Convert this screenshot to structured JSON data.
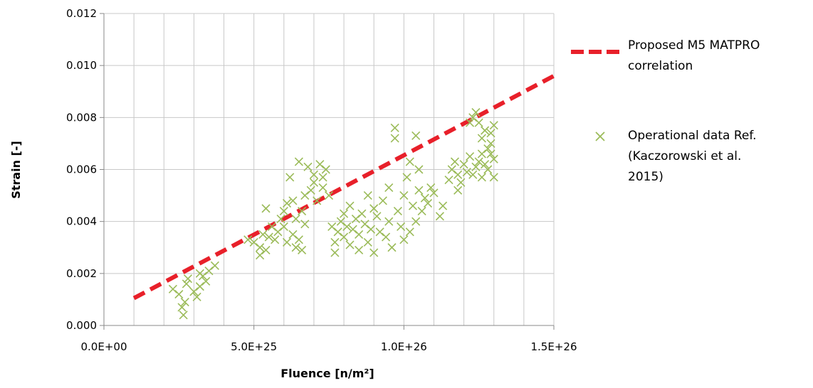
{
  "chart_data": {
    "type": "scatter",
    "xlabel": "Fluence [n/m²]",
    "ylabel": "Strain [-]",
    "xlim": [
      0,
      1.5e+26
    ],
    "ylim": [
      0,
      0.012
    ],
    "x_ticks": [
      0,
      5e+25,
      1e+26,
      1.5e+26
    ],
    "x_tick_labels": [
      "0.0E+00",
      "5.0E+25",
      "1.0E+26",
      "1.5E+26"
    ],
    "y_ticks": [
      0,
      0.002,
      0.004,
      0.006,
      0.008,
      0.01,
      0.012
    ],
    "y_tick_labels": [
      "0.000",
      "0.002",
      "0.004",
      "0.006",
      "0.008",
      "0.010",
      "0.012"
    ],
    "grid": true,
    "legend_position": "right",
    "series": [
      {
        "name": "Proposed M5 MATPRO correlation",
        "kind": "line",
        "style": "dashed",
        "color": "#e8202a",
        "points": [
          [
            1e+25,
            0.00105
          ],
          [
            1.5e+26,
            0.0096
          ]
        ]
      },
      {
        "name": "Operational data Ref. (Kaczorowski et al. 2015)",
        "kind": "scatter",
        "marker": "x",
        "color": "#9bbb59",
        "points": [
          [
            2.3e+25,
            0.0014
          ],
          [
            2.5e+25,
            0.0012
          ],
          [
            2.6e+25,
            0.0007
          ],
          [
            2.65e+25,
            0.0004
          ],
          [
            2.7e+25,
            0.0009
          ],
          [
            2.75e+25,
            0.0016
          ],
          [
            2.8e+25,
            0.0018
          ],
          [
            3e+25,
            0.0013
          ],
          [
            3.1e+25,
            0.0011
          ],
          [
            3.2e+25,
            0.0015
          ],
          [
            3.3e+25,
            0.0019
          ],
          [
            3.4e+25,
            0.0017
          ],
          [
            3.5e+25,
            0.0021
          ],
          [
            3.7e+25,
            0.0023
          ],
          [
            3.2e+25,
            0.002
          ],
          [
            4.8e+25,
            0.0033
          ],
          [
            5e+25,
            0.0032
          ],
          [
            5.2e+25,
            0.003
          ],
          [
            5.2e+25,
            0.0027
          ],
          [
            5.3e+25,
            0.0035
          ],
          [
            5.4e+25,
            0.0029
          ],
          [
            5.4e+25,
            0.0045
          ],
          [
            5.5e+25,
            0.0034
          ],
          [
            5.6e+25,
            0.0038
          ],
          [
            5.7e+25,
            0.0033
          ],
          [
            5.8e+25,
            0.0036
          ],
          [
            5.9e+25,
            0.0041
          ],
          [
            6e+25,
            0.0044
          ],
          [
            6e+25,
            0.0038
          ],
          [
            6.1e+25,
            0.0047
          ],
          [
            6.1e+25,
            0.0032
          ],
          [
            6.2e+25,
            0.0057
          ],
          [
            6.3e+25,
            0.0048
          ],
          [
            6.3e+25,
            0.0035
          ],
          [
            6.4e+25,
            0.003
          ],
          [
            6.4e+25,
            0.0041
          ],
          [
            6.5e+25,
            0.0063
          ],
          [
            6.5e+25,
            0.0033
          ],
          [
            6.6e+25,
            0.0044
          ],
          [
            6.6e+25,
            0.0029
          ],
          [
            6.7e+25,
            0.0039
          ],
          [
            6.7e+25,
            0.005
          ],
          [
            6.8e+25,
            0.0061
          ],
          [
            6.9e+25,
            0.0052
          ],
          [
            7e+25,
            0.0055
          ],
          [
            7e+25,
            0.0058
          ],
          [
            7.1e+25,
            0.0048
          ],
          [
            7.2e+25,
            0.0062
          ],
          [
            7.3e+25,
            0.0057
          ],
          [
            7.3e+25,
            0.0053
          ],
          [
            7.4e+25,
            0.006
          ],
          [
            7.5e+25,
            0.005
          ],
          [
            7.6e+25,
            0.0038
          ],
          [
            7.7e+25,
            0.0032
          ],
          [
            7.7e+25,
            0.0028
          ],
          [
            7.8e+25,
            0.0036
          ],
          [
            7.9e+25,
            0.004
          ],
          [
            8e+25,
            0.0043
          ],
          [
            8e+25,
            0.0034
          ],
          [
            8.1e+25,
            0.0038
          ],
          [
            8.2e+25,
            0.0031
          ],
          [
            8.2e+25,
            0.0046
          ],
          [
            8.3e+25,
            0.0037
          ],
          [
            8.4e+25,
            0.0041
          ],
          [
            8.5e+25,
            0.0029
          ],
          [
            8.5e+25,
            0.0035
          ],
          [
            8.6e+25,
            0.0043
          ],
          [
            8.7e+25,
            0.0039
          ],
          [
            8.8e+25,
            0.0032
          ],
          [
            8.8e+25,
            0.005
          ],
          [
            8.9e+25,
            0.0037
          ],
          [
            9e+25,
            0.0045
          ],
          [
            9e+25,
            0.0028
          ],
          [
            9.1e+25,
            0.0042
          ],
          [
            9.2e+25,
            0.0036
          ],
          [
            9.3e+25,
            0.0048
          ],
          [
            9.4e+25,
            0.0034
          ],
          [
            9.5e+25,
            0.004
          ],
          [
            9.5e+25,
            0.0053
          ],
          [
            9.6e+25,
            0.003
          ],
          [
            9.7e+25,
            0.0072
          ],
          [
            9.7e+25,
            0.0076
          ],
          [
            9.8e+25,
            0.0044
          ],
          [
            9.9e+25,
            0.0038
          ],
          [
            1e+26,
            0.005
          ],
          [
            1e+26,
            0.0033
          ],
          [
            1.01e+26,
            0.0057
          ],
          [
            1.02e+26,
            0.0063
          ],
          [
            1.02e+26,
            0.0036
          ],
          [
            1.03e+26,
            0.0046
          ],
          [
            1.04e+26,
            0.0073
          ],
          [
            1.04e+26,
            0.004
          ],
          [
            1.05e+26,
            0.006
          ],
          [
            1.05e+26,
            0.0052
          ],
          [
            1.06e+26,
            0.0044
          ],
          [
            1.07e+26,
            0.0049
          ],
          [
            1.08e+26,
            0.0047
          ],
          [
            1.09e+26,
            0.0053
          ],
          [
            1.1e+26,
            0.0051
          ],
          [
            1.12e+26,
            0.0042
          ],
          [
            1.13e+26,
            0.0046
          ],
          [
            1.15e+26,
            0.0056
          ],
          [
            1.16e+26,
            0.006
          ],
          [
            1.17e+26,
            0.0063
          ],
          [
            1.18e+26,
            0.0058
          ],
          [
            1.19e+26,
            0.0055
          ],
          [
            1.2e+26,
            0.0062
          ],
          [
            1.21e+26,
            0.0059
          ],
          [
            1.22e+26,
            0.0065
          ],
          [
            1.22e+26,
            0.0078
          ],
          [
            1.23e+26,
            0.008
          ],
          [
            1.24e+26,
            0.0061
          ],
          [
            1.24e+26,
            0.0082
          ],
          [
            1.25e+26,
            0.0063
          ],
          [
            1.25e+26,
            0.0078
          ],
          [
            1.26e+26,
            0.0066
          ],
          [
            1.26e+26,
            0.0057
          ],
          [
            1.27e+26,
            0.0062
          ],
          [
            1.27e+26,
            0.0075
          ],
          [
            1.28e+26,
            0.0068
          ],
          [
            1.28e+26,
            0.006
          ],
          [
            1.29e+26,
            0.007
          ],
          [
            1.29e+26,
            0.0074
          ],
          [
            1.3e+26,
            0.0064
          ],
          [
            1.3e+26,
            0.0077
          ],
          [
            1.3e+26,
            0.0057
          ],
          [
            1.29e+26,
            0.0066
          ],
          [
            1.26e+26,
            0.0072
          ],
          [
            1.23e+26,
            0.0058
          ],
          [
            1.18e+26,
            0.0052
          ]
        ]
      }
    ]
  },
  "legend": {
    "items": [
      {
        "lines": [
          "Proposed M5 MATPRO",
          "correlation"
        ]
      },
      {
        "lines": [
          "Operational data Ref.",
          "(Kaczorowski et al.",
          "2015)"
        ]
      }
    ]
  }
}
